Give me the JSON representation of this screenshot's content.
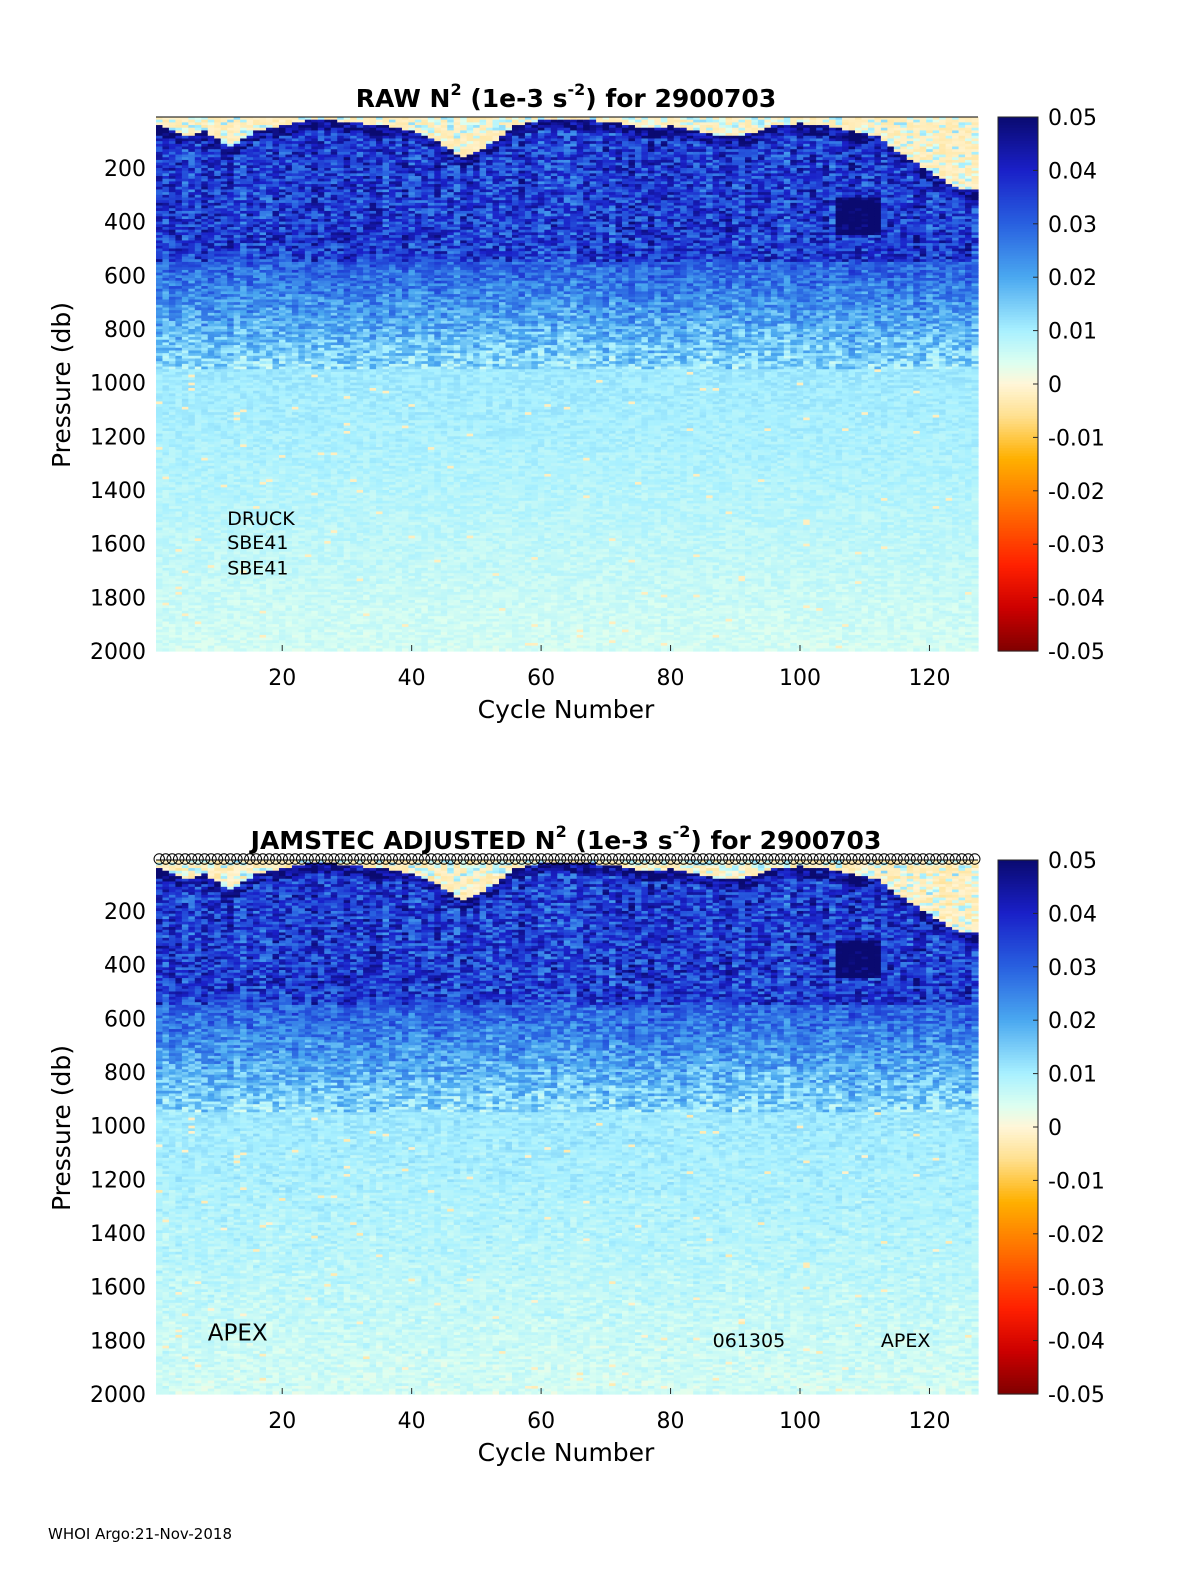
{
  "footer": "WHOI Argo:21-Nov-2018",
  "colormap": {
    "stops": [
      {
        "v": -0.05,
        "c": "#800000"
      },
      {
        "v": -0.042,
        "c": "#cc0000"
      },
      {
        "v": -0.034,
        "c": "#ff2000"
      },
      {
        "v": -0.024,
        "c": "#ff6a00"
      },
      {
        "v": -0.014,
        "c": "#ffb000"
      },
      {
        "v": -0.006,
        "c": "#ffe090"
      },
      {
        "v": 0.0,
        "c": "#fff6d8"
      },
      {
        "v": 0.004,
        "c": "#dcfff0"
      },
      {
        "v": 0.01,
        "c": "#a8f0ff"
      },
      {
        "v": 0.02,
        "c": "#4aa8f0"
      },
      {
        "v": 0.03,
        "c": "#2860e0"
      },
      {
        "v": 0.04,
        "c": "#1a20c8"
      },
      {
        "v": 0.05,
        "c": "#0a0a70"
      }
    ]
  },
  "chart_data": [
    {
      "type": "heatmap",
      "id": "raw",
      "title_parts": [
        "RAW N",
        "2",
        " (1e-3 s",
        "-2",
        ") for 2900703"
      ],
      "xlabel": "Cycle Number",
      "ylabel": "Pressure (db)",
      "xlim": [
        1,
        127
      ],
      "ylim": [
        2000,
        10
      ],
      "xticks": [
        20,
        40,
        60,
        80,
        100,
        120
      ],
      "yticks": [
        200,
        400,
        600,
        800,
        1000,
        1200,
        1400,
        1600,
        1800,
        2000
      ],
      "colorbar": {
        "min": -0.05,
        "max": 0.05,
        "ticks": [
          "0.05",
          "0.04",
          "0.03",
          "0.02",
          "0.01",
          "0",
          "-0.01",
          "-0.02",
          "-0.03",
          "-0.04",
          "-0.05"
        ]
      },
      "annotations": [
        {
          "text": "DRUCK",
          "cycle": 12,
          "pressure": 1530
        },
        {
          "text": "SBE41",
          "cycle": 12,
          "pressure": 1620
        },
        {
          "text": "SBE41",
          "cycle": 12,
          "pressure": 1715
        }
      ],
      "markers": false
    },
    {
      "type": "heatmap",
      "id": "adjusted",
      "title_parts": [
        "JAMSTEC  ADJUSTED N",
        "2",
        " (1e-3 s",
        "-2",
        ") for 2900703"
      ],
      "xlabel": "Cycle Number",
      "ylabel": "Pressure (db)",
      "xlim": [
        1,
        127
      ],
      "ylim": [
        2000,
        10
      ],
      "xticks": [
        20,
        40,
        60,
        80,
        100,
        120
      ],
      "yticks": [
        200,
        400,
        600,
        800,
        1000,
        1200,
        1400,
        1600,
        1800,
        2000
      ],
      "colorbar": {
        "min": -0.05,
        "max": 0.05,
        "ticks": [
          "0.05",
          "0.04",
          "0.03",
          "0.02",
          "0.01",
          "0",
          "-0.01",
          "-0.02",
          "-0.03",
          "-0.04",
          "-0.05"
        ]
      },
      "annotations": [
        {
          "text": "APEX",
          "cycle": 9,
          "pressure": 1800,
          "size": "large"
        },
        {
          "text": "061305",
          "cycle": 87,
          "pressure": 1825
        },
        {
          "text": "APEX",
          "cycle": 113,
          "pressure": 1825
        }
      ],
      "markers": true,
      "surface_profile": {
        "description": "approximate shallow warm-layer bottom (db) by cycle",
        "cycles": [
          1,
          5,
          8,
          12,
          16,
          20,
          24,
          28,
          32,
          36,
          40,
          44,
          48,
          52,
          56,
          60,
          64,
          68,
          72,
          76,
          80,
          84,
          88,
          92,
          96,
          100,
          104,
          108,
          112,
          116,
          120,
          124,
          127
        ],
        "pressure": [
          40,
          80,
          60,
          120,
          60,
          40,
          20,
          20,
          30,
          40,
          60,
          100,
          160,
          110,
          40,
          20,
          20,
          20,
          30,
          50,
          40,
          60,
          80,
          70,
          40,
          30,
          40,
          60,
          80,
          150,
          210,
          270,
          280
        ]
      }
    }
  ]
}
